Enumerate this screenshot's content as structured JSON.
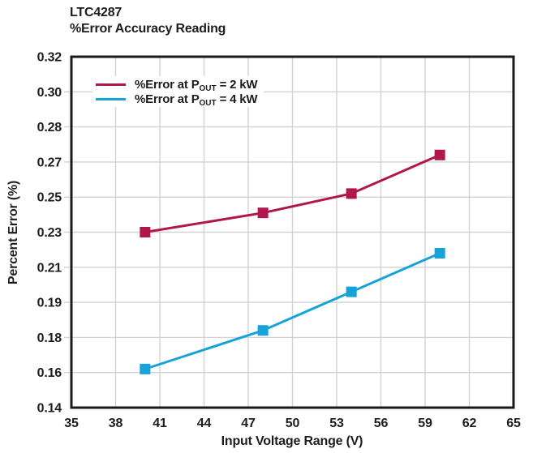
{
  "title": {
    "line1": "LTC4287",
    "line2": "%Error Accuracy Reading"
  },
  "chart_data": {
    "type": "line",
    "title": "LTC4287 %Error Accuracy Reading",
    "xlabel": "Input Voltage Range (V)",
    "ylabel": "Percent Error (%)",
    "xlim": [
      35,
      65
    ],
    "x_ticks": [
      "35",
      "38",
      "41",
      "44",
      "47",
      "50",
      "53",
      "56",
      "59",
      "62",
      "65"
    ],
    "y_tick_labels": [
      "0.32",
      "0.30",
      "0.28",
      "0.27",
      "0.25",
      "0.23",
      "0.21",
      "0.19",
      "0.18",
      "0.16",
      "0.14"
    ],
    "grid": true,
    "legend_position": "top-left inside",
    "marker": "square",
    "x": [
      40,
      48,
      54,
      60
    ],
    "series": [
      {
        "id": "pout-2kw",
        "label_prefix": "%Error at P",
        "label_sub": "OUT",
        "label_suffix": " = 2 kW",
        "color": "#B0174C",
        "values": [
          0.23,
          0.241,
          0.252,
          0.272
        ]
      },
      {
        "id": "pout-4kw",
        "label_prefix": "%Error at P",
        "label_sub": "OUT",
        "label_suffix": " = 4 kW",
        "color": "#17A2D8",
        "values": [
          0.162,
          0.182,
          0.196,
          0.218
        ]
      }
    ],
    "frame_color": "#1a1a1a",
    "grid_color": "#d2d2d2",
    "text_color": "#1d1d1d"
  }
}
